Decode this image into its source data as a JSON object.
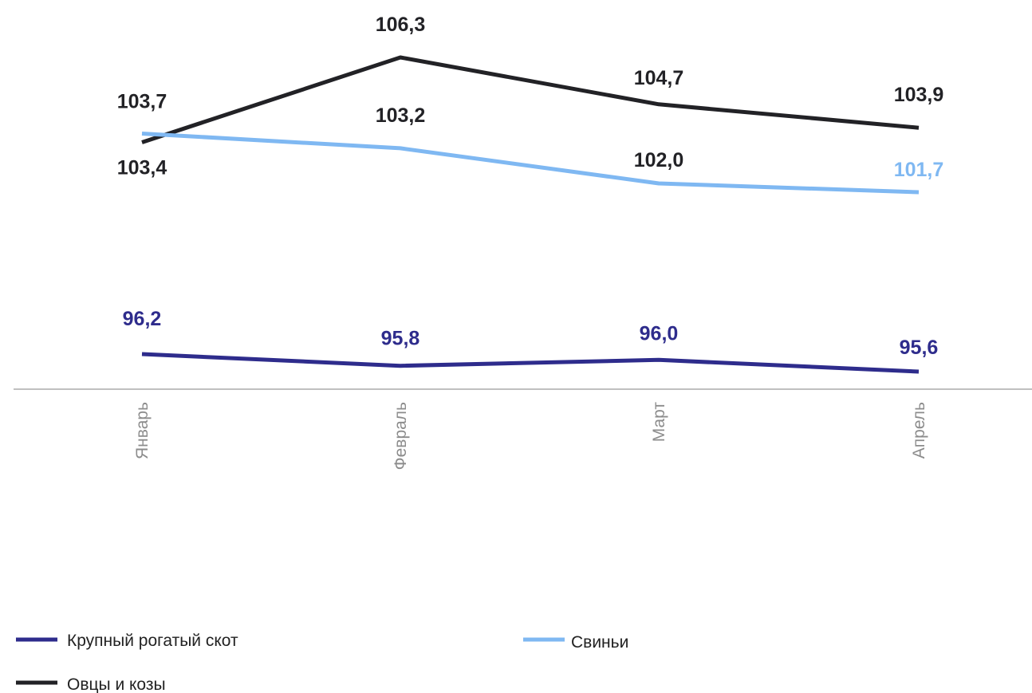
{
  "chart_data": {
    "type": "line",
    "categories": [
      "Январь",
      "Февраль",
      "Март",
      "Апрель"
    ],
    "series": [
      {
        "name": "Крупный рогатый скот",
        "color": "#2e2c8c",
        "values": [
          96.2,
          95.8,
          96.0,
          95.6
        ],
        "labels": [
          "96,2",
          "95,8",
          "96,0",
          "95,6"
        ],
        "label_colors": [
          "#2e2c8c",
          "#2e2c8c",
          "#2e2c8c",
          "#2e2c8c"
        ]
      },
      {
        "name": "Свиньи",
        "color": "#7fb8f2",
        "values": [
          103.7,
          103.2,
          102.0,
          101.7
        ],
        "labels": [
          "103,7",
          "103,2",
          "102,0",
          "101,7"
        ],
        "label_colors": [
          "#222226",
          "#222226",
          "#222226",
          "#7fb8f2"
        ]
      },
      {
        "name": "Овцы и козы",
        "color": "#222226",
        "values": [
          103.4,
          106.3,
          104.7,
          103.9
        ],
        "labels": [
          "103,4",
          "106,3",
          "104,7",
          "103,9"
        ],
        "label_colors": [
          "#222226",
          "#222226",
          "#222226",
          "#222226"
        ]
      }
    ],
    "axis_color": "#c0c0c0",
    "tick_color": "#8c8c8c",
    "grid": false,
    "legend_position": "bottom"
  },
  "legend": {
    "items": [
      {
        "label": "Крупный рогатый скот",
        "color": "#2e2c8c"
      },
      {
        "label": "Свиньи",
        "color": "#7fb8f2"
      },
      {
        "label": "Овцы и козы",
        "color": "#222226"
      }
    ]
  }
}
